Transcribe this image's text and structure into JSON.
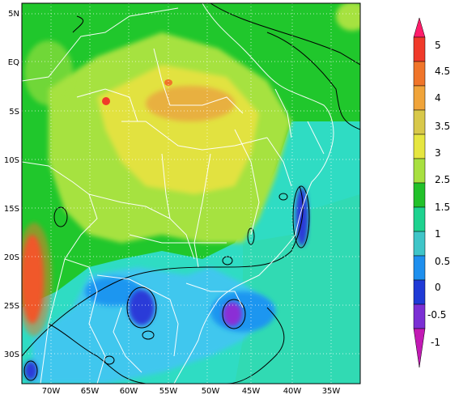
{
  "map": {
    "lat_ticks": [
      "5N",
      "EQ",
      "5S",
      "10S",
      "15S",
      "20S",
      "25S",
      "30S"
    ],
    "lon_ticks": [
      "70W",
      "65W",
      "60W",
      "55W",
      "50W",
      "45W",
      "40W",
      "35W"
    ],
    "extent": {
      "lon_min": -74,
      "lon_max": -30,
      "lat_min": -34,
      "lat_max": 7
    },
    "background_value_color": "#1fcf2a"
  },
  "colorbar": {
    "labels": [
      "5",
      "4.5",
      "4",
      "3.5",
      "3",
      "2.5",
      "1.5",
      "1",
      "0.5",
      "0",
      "-0.5",
      "-1"
    ],
    "colors": [
      "#ff1d6a",
      "#f03a2a",
      "#f0752a",
      "#f0a43a",
      "#d8c84a",
      "#e6e640",
      "#a8e040",
      "#22c12a",
      "#1ed28f",
      "#3fc5c8",
      "#1e8fee",
      "#1f3ad6",
      "#7b2fd4",
      "#c21ab4"
    ]
  }
}
